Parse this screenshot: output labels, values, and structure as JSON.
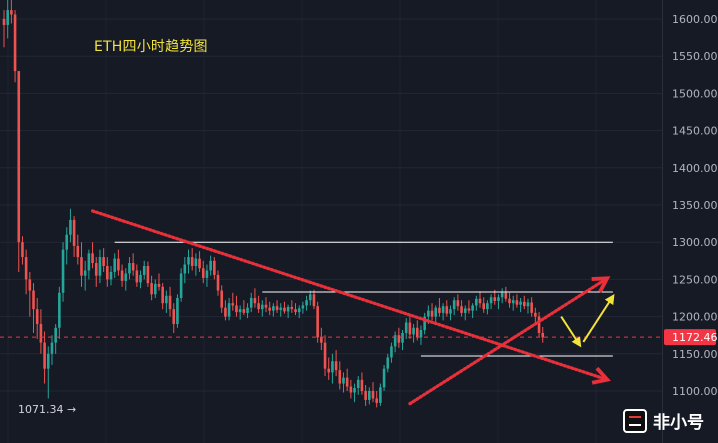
{
  "title": "ETH四小时趋势图",
  "watermark": "非小号",
  "chart_data": {
    "type": "candlestick",
    "title": "ETH四小时趋势图",
    "y_axis": {
      "position": "right",
      "ylim": [
        1071,
        1628
      ],
      "ticks": [
        "1600.00",
        "1550.00",
        "1500.00",
        "1450.00",
        "1400.00",
        "1350.00",
        "1300.00",
        "1250.00",
        "1200.00",
        "1150.00",
        "1100.00"
      ]
    },
    "current_price": {
      "value": 1172.46,
      "label": "1172.46",
      "color": "#f23645"
    },
    "low_marker": {
      "value": 1071.34,
      "label": "1071.34 →"
    },
    "up_color": "#26a69a",
    "down_color": "#ef5350",
    "horizontal_lines": [
      {
        "value": 1300,
        "from_index": 30,
        "to_index": 165,
        "color": "#ffffff"
      },
      {
        "value": 1233,
        "from_index": 70,
        "to_index": 165,
        "color": "#ffffff"
      },
      {
        "value": 1147,
        "from_index": 113,
        "to_index": 165,
        "color": "#ffffff"
      }
    ],
    "trend_arrows": [
      {
        "from": [
          24,
          1342
        ],
        "to": [
          163,
          1116
        ],
        "color": "#e8303a",
        "style": "dotted"
      },
      {
        "from": [
          110,
          1083
        ],
        "to": [
          163,
          1250
        ],
        "color": "#e8303a",
        "style": "dotted"
      }
    ],
    "projection_arrows": [
      {
        "points": [
          [
            151,
            1200
          ],
          [
            156,
            1162
          ]
        ],
        "color": "#f2e23a"
      },
      {
        "points": [
          [
            157,
            1166
          ],
          [
            165,
            1227
          ]
        ],
        "color": "#f2e23a"
      }
    ],
    "candles": [
      [
        1600,
        1612,
        1562,
        1592
      ],
      [
        1592,
        1627,
        1574,
        1612
      ],
      [
        1612,
        1630,
        1594,
        1606
      ],
      [
        1606,
        1612,
        1515,
        1530
      ],
      [
        1530,
        1530,
        1260,
        1300
      ],
      [
        1300,
        1308,
        1270,
        1280
      ],
      [
        1280,
        1290,
        1230,
        1250
      ],
      [
        1250,
        1260,
        1200,
        1235
      ],
      [
        1235,
        1245,
        1178,
        1210
      ],
      [
        1210,
        1225,
        1170,
        1190
      ],
      [
        1190,
        1210,
        1150,
        1165
      ],
      [
        1165,
        1180,
        1110,
        1130
      ],
      [
        1130,
        1160,
        1090,
        1150
      ],
      [
        1150,
        1175,
        1135,
        1165
      ],
      [
        1165,
        1190,
        1150,
        1185
      ],
      [
        1185,
        1240,
        1170,
        1232
      ],
      [
        1232,
        1300,
        1220,
        1290
      ],
      [
        1290,
        1320,
        1270,
        1310
      ],
      [
        1310,
        1345,
        1300,
        1330
      ],
      [
        1330,
        1335,
        1280,
        1295
      ],
      [
        1295,
        1310,
        1270,
        1280
      ],
      [
        1280,
        1300,
        1240,
        1255
      ],
      [
        1255,
        1275,
        1235,
        1262
      ],
      [
        1262,
        1290,
        1250,
        1285
      ],
      [
        1285,
        1300,
        1265,
        1272
      ],
      [
        1272,
        1280,
        1240,
        1255
      ],
      [
        1255,
        1290,
        1245,
        1280
      ],
      [
        1280,
        1292,
        1260,
        1268
      ],
      [
        1268,
        1280,
        1240,
        1250
      ],
      [
        1250,
        1268,
        1242,
        1260
      ],
      [
        1260,
        1285,
        1252,
        1278
      ],
      [
        1278,
        1290,
        1255,
        1262
      ],
      [
        1262,
        1270,
        1240,
        1248
      ],
      [
        1248,
        1265,
        1235,
        1258
      ],
      [
        1258,
        1280,
        1250,
        1272
      ],
      [
        1272,
        1285,
        1255,
        1262
      ],
      [
        1262,
        1270,
        1240,
        1246
      ],
      [
        1246,
        1262,
        1238,
        1256
      ],
      [
        1256,
        1275,
        1250,
        1268
      ],
      [
        1268,
        1274,
        1240,
        1245
      ],
      [
        1245,
        1255,
        1222,
        1230
      ],
      [
        1230,
        1250,
        1225,
        1244
      ],
      [
        1244,
        1258,
        1235,
        1240
      ],
      [
        1240,
        1245,
        1210,
        1218
      ],
      [
        1218,
        1235,
        1205,
        1228
      ],
      [
        1228,
        1240,
        1200,
        1210
      ],
      [
        1210,
        1218,
        1178,
        1190
      ],
      [
        1190,
        1230,
        1185,
        1225
      ],
      [
        1225,
        1265,
        1220,
        1258
      ],
      [
        1258,
        1280,
        1245,
        1270
      ],
      [
        1270,
        1290,
        1258,
        1280
      ],
      [
        1280,
        1292,
        1262,
        1268
      ],
      [
        1268,
        1285,
        1255,
        1278
      ],
      [
        1278,
        1288,
        1260,
        1265
      ],
      [
        1265,
        1275,
        1245,
        1252
      ],
      [
        1252,
        1270,
        1240,
        1262
      ],
      [
        1262,
        1282,
        1255,
        1275
      ],
      [
        1275,
        1280,
        1250,
        1256
      ],
      [
        1256,
        1262,
        1228,
        1235
      ],
      [
        1235,
        1242,
        1205,
        1212
      ],
      [
        1212,
        1222,
        1195,
        1200
      ],
      [
        1200,
        1225,
        1195,
        1218
      ],
      [
        1218,
        1232,
        1208,
        1215
      ],
      [
        1215,
        1228,
        1200,
        1206
      ],
      [
        1206,
        1215,
        1196,
        1210
      ],
      [
        1210,
        1222,
        1202,
        1205
      ],
      [
        1205,
        1218,
        1198,
        1212
      ],
      [
        1212,
        1232,
        1206,
        1225
      ],
      [
        1225,
        1238,
        1212,
        1218
      ],
      [
        1218,
        1228,
        1205,
        1210
      ],
      [
        1210,
        1222,
        1200,
        1216
      ],
      [
        1216,
        1226,
        1206,
        1212
      ],
      [
        1212,
        1220,
        1202,
        1208
      ],
      [
        1208,
        1218,
        1200,
        1214
      ],
      [
        1214,
        1222,
        1205,
        1209
      ],
      [
        1209,
        1218,
        1200,
        1212
      ],
      [
        1212,
        1220,
        1204,
        1207
      ],
      [
        1207,
        1216,
        1198,
        1213
      ],
      [
        1213,
        1222,
        1205,
        1210
      ],
      [
        1210,
        1218,
        1202,
        1206
      ],
      [
        1206,
        1215,
        1198,
        1211
      ],
      [
        1211,
        1220,
        1204,
        1215
      ],
      [
        1215,
        1228,
        1208,
        1222
      ],
      [
        1222,
        1235,
        1215,
        1230
      ],
      [
        1230,
        1236,
        1210,
        1214
      ],
      [
        1214,
        1220,
        1165,
        1172
      ],
      [
        1172,
        1185,
        1155,
        1165
      ],
      [
        1165,
        1175,
        1120,
        1130
      ],
      [
        1130,
        1145,
        1115,
        1125
      ],
      [
        1125,
        1150,
        1110,
        1140
      ],
      [
        1140,
        1155,
        1120,
        1128
      ],
      [
        1128,
        1140,
        1102,
        1110
      ],
      [
        1110,
        1125,
        1098,
        1118
      ],
      [
        1118,
        1130,
        1100,
        1106
      ],
      [
        1106,
        1115,
        1090,
        1098
      ],
      [
        1098,
        1110,
        1085,
        1104
      ],
      [
        1104,
        1120,
        1095,
        1115
      ],
      [
        1115,
        1125,
        1095,
        1100
      ],
      [
        1100,
        1108,
        1080,
        1088
      ],
      [
        1088,
        1105,
        1082,
        1100
      ],
      [
        1100,
        1112,
        1085,
        1090
      ],
      [
        1090,
        1100,
        1078,
        1084
      ],
      [
        1084,
        1110,
        1080,
        1105
      ],
      [
        1105,
        1135,
        1100,
        1130
      ],
      [
        1130,
        1150,
        1125,
        1145
      ],
      [
        1145,
        1165,
        1138,
        1160
      ],
      [
        1160,
        1180,
        1152,
        1175
      ],
      [
        1175,
        1185,
        1158,
        1165
      ],
      [
        1165,
        1182,
        1155,
        1178
      ],
      [
        1178,
        1198,
        1170,
        1192
      ],
      [
        1192,
        1200,
        1170,
        1176
      ],
      [
        1176,
        1190,
        1165,
        1185
      ],
      [
        1185,
        1195,
        1168,
        1172
      ],
      [
        1172,
        1188,
        1162,
        1182
      ],
      [
        1182,
        1205,
        1176,
        1200
      ],
      [
        1200,
        1215,
        1190,
        1208
      ],
      [
        1208,
        1218,
        1195,
        1200
      ],
      [
        1200,
        1215,
        1192,
        1212
      ],
      [
        1212,
        1225,
        1200,
        1205
      ],
      [
        1205,
        1218,
        1195,
        1214
      ],
      [
        1214,
        1222,
        1200,
        1204
      ],
      [
        1204,
        1215,
        1195,
        1210
      ],
      [
        1210,
        1226,
        1202,
        1222
      ],
      [
        1222,
        1230,
        1208,
        1214
      ],
      [
        1214,
        1222,
        1200,
        1205
      ],
      [
        1205,
        1215,
        1195,
        1211
      ],
      [
        1211,
        1222,
        1204,
        1208
      ],
      [
        1208,
        1218,
        1198,
        1215
      ],
      [
        1215,
        1228,
        1208,
        1224
      ],
      [
        1224,
        1234,
        1212,
        1218
      ],
      [
        1218,
        1226,
        1205,
        1210
      ],
      [
        1210,
        1222,
        1203,
        1218
      ],
      [
        1218,
        1230,
        1210,
        1226
      ],
      [
        1226,
        1236,
        1216,
        1221
      ],
      [
        1221,
        1230,
        1210,
        1226
      ],
      [
        1226,
        1238,
        1218,
        1232
      ],
      [
        1232,
        1240,
        1220,
        1224
      ],
      [
        1224,
        1232,
        1212,
        1218
      ],
      [
        1218,
        1228,
        1208,
        1222
      ],
      [
        1222,
        1230,
        1212,
        1216
      ],
      [
        1216,
        1225,
        1206,
        1220
      ],
      [
        1220,
        1228,
        1210,
        1214
      ],
      [
        1214,
        1224,
        1204,
        1219
      ],
      [
        1219,
        1226,
        1200,
        1205
      ],
      [
        1205,
        1212,
        1190,
        1200
      ],
      [
        1200,
        1206,
        1172,
        1178
      ],
      [
        1178,
        1186,
        1165,
        1172
      ]
    ]
  }
}
